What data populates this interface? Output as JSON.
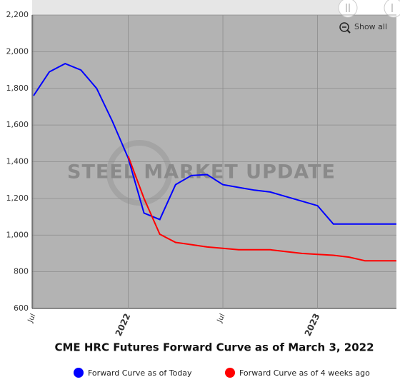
{
  "chart_data": {
    "type": "line",
    "title": "CME HRC Futures Forward Curve as of March 3, 2022",
    "watermark": "STEEL MARKET UPDATE",
    "reset_label": "Show all",
    "categories": [
      "Jul",
      null,
      null,
      null,
      null,
      null,
      "2022",
      null,
      null,
      null,
      null,
      null,
      "Jul",
      null,
      null,
      null,
      null,
      null,
      "2023",
      null,
      null,
      null,
      null,
      null
    ],
    "series": [
      {
        "name": "Forward Curve as of Today",
        "color": "#0000ff",
        "values": [
          1760,
          1890,
          1935,
          1900,
          1800,
          1620,
          1420,
          1120,
          1085,
          1275,
          1325,
          1330,
          1275,
          1260,
          1245,
          1235,
          1210,
          1185,
          1160,
          1060,
          1060,
          1060,
          1060,
          1060
        ]
      },
      {
        "name": "Forward Curve as of 4 weeks ago",
        "color": "#ff0000",
        "values": [
          null,
          null,
          null,
          null,
          null,
          null,
          1430,
          1200,
          1005,
          960,
          948,
          935,
          928,
          920,
          920,
          920,
          910,
          900,
          895,
          890,
          880,
          860,
          860,
          860
        ]
      }
    ],
    "ylim": [
      600,
      2200
    ],
    "yticks": [
      600,
      800,
      {
        "value": 1000,
        "label": "1,000"
      },
      {
        "value": 1200,
        "label": "1,200"
      },
      {
        "value": 1400,
        "label": "1,400"
      },
      {
        "value": 1600,
        "label": "1,600"
      },
      {
        "value": 1800,
        "label": "1,800"
      },
      {
        "value": 2000,
        "label": "2,000"
      },
      {
        "value": 2200,
        "label": "2,200"
      }
    ],
    "grid": true
  }
}
